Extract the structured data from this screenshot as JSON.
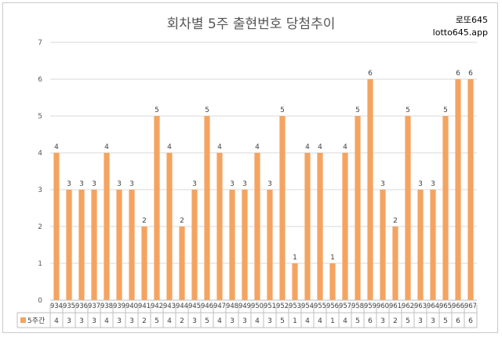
{
  "brand": {
    "line1": "로또645",
    "line2": "lotto645.app"
  },
  "colors": {
    "bar": "#F4A460",
    "grid": "#d9d9d9",
    "axis": "#bfbfbf"
  },
  "chart_data": {
    "type": "bar",
    "title": "회차별 5주 출현번호 당첨추이",
    "xlabel": "",
    "ylabel": "",
    "ylim": [
      0,
      7
    ],
    "yticks": [
      "0",
      "1",
      "2",
      "3",
      "4",
      "5",
      "6",
      "7"
    ],
    "grid": true,
    "legend": "data-table",
    "categories": [
      "934",
      "935",
      "936",
      "937",
      "938",
      "939",
      "940",
      "941",
      "942",
      "943",
      "944",
      "945",
      "946",
      "947",
      "948",
      "949",
      "950",
      "951",
      "952",
      "953",
      "954",
      "955",
      "956",
      "957",
      "958",
      "959",
      "960",
      "961",
      "962",
      "963",
      "964",
      "965",
      "966",
      "967"
    ],
    "series": [
      {
        "name": "5주간",
        "values": [
          4,
          3,
          3,
          3,
          4,
          3,
          3,
          2,
          5,
          4,
          2,
          3,
          5,
          4,
          3,
          3,
          4,
          3,
          5,
          1,
          4,
          4,
          1,
          4,
          5,
          6,
          3,
          2,
          5,
          3,
          3,
          5,
          6,
          6
        ]
      }
    ]
  }
}
